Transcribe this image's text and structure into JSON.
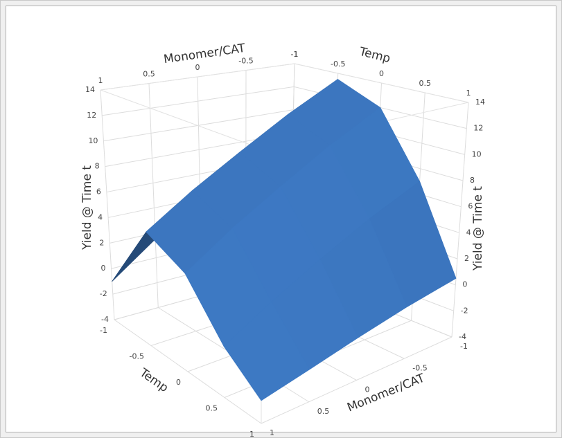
{
  "chart_data": {
    "type": "surface",
    "x_label": "Monomer/CAT",
    "y_label": "Temp",
    "z_label": "Yield @ Time t",
    "x": [
      -1,
      -0.5,
      0,
      0.5,
      1
    ],
    "y": [
      -1,
      -0.5,
      0,
      0.5,
      1
    ],
    "z": [
      [
        9,
        6.5,
        4,
        1.5,
        -1
      ],
      [
        13.5,
        11.3,
        9,
        6.8,
        4.5
      ],
      [
        12,
        9.8,
        7.5,
        5.3,
        3
      ],
      [
        7,
        5.2,
        3.3,
        1.4,
        -0.5
      ],
      [
        0.5,
        -0.2,
        -1,
        -1.8,
        -2.5
      ]
    ],
    "color": "#3a73ba",
    "xlim": [
      -1,
      1
    ],
    "xticks": [
      -1,
      -0.5,
      0,
      0.5,
      1
    ],
    "ylim": [
      -1,
      1
    ],
    "yticks": [
      -1,
      -0.5,
      0,
      0.5,
      1
    ],
    "zlim": [
      -4,
      14
    ],
    "zticks": [
      -4,
      -2,
      0,
      2,
      4,
      6,
      8,
      10,
      12,
      14
    ],
    "grid": true
  }
}
